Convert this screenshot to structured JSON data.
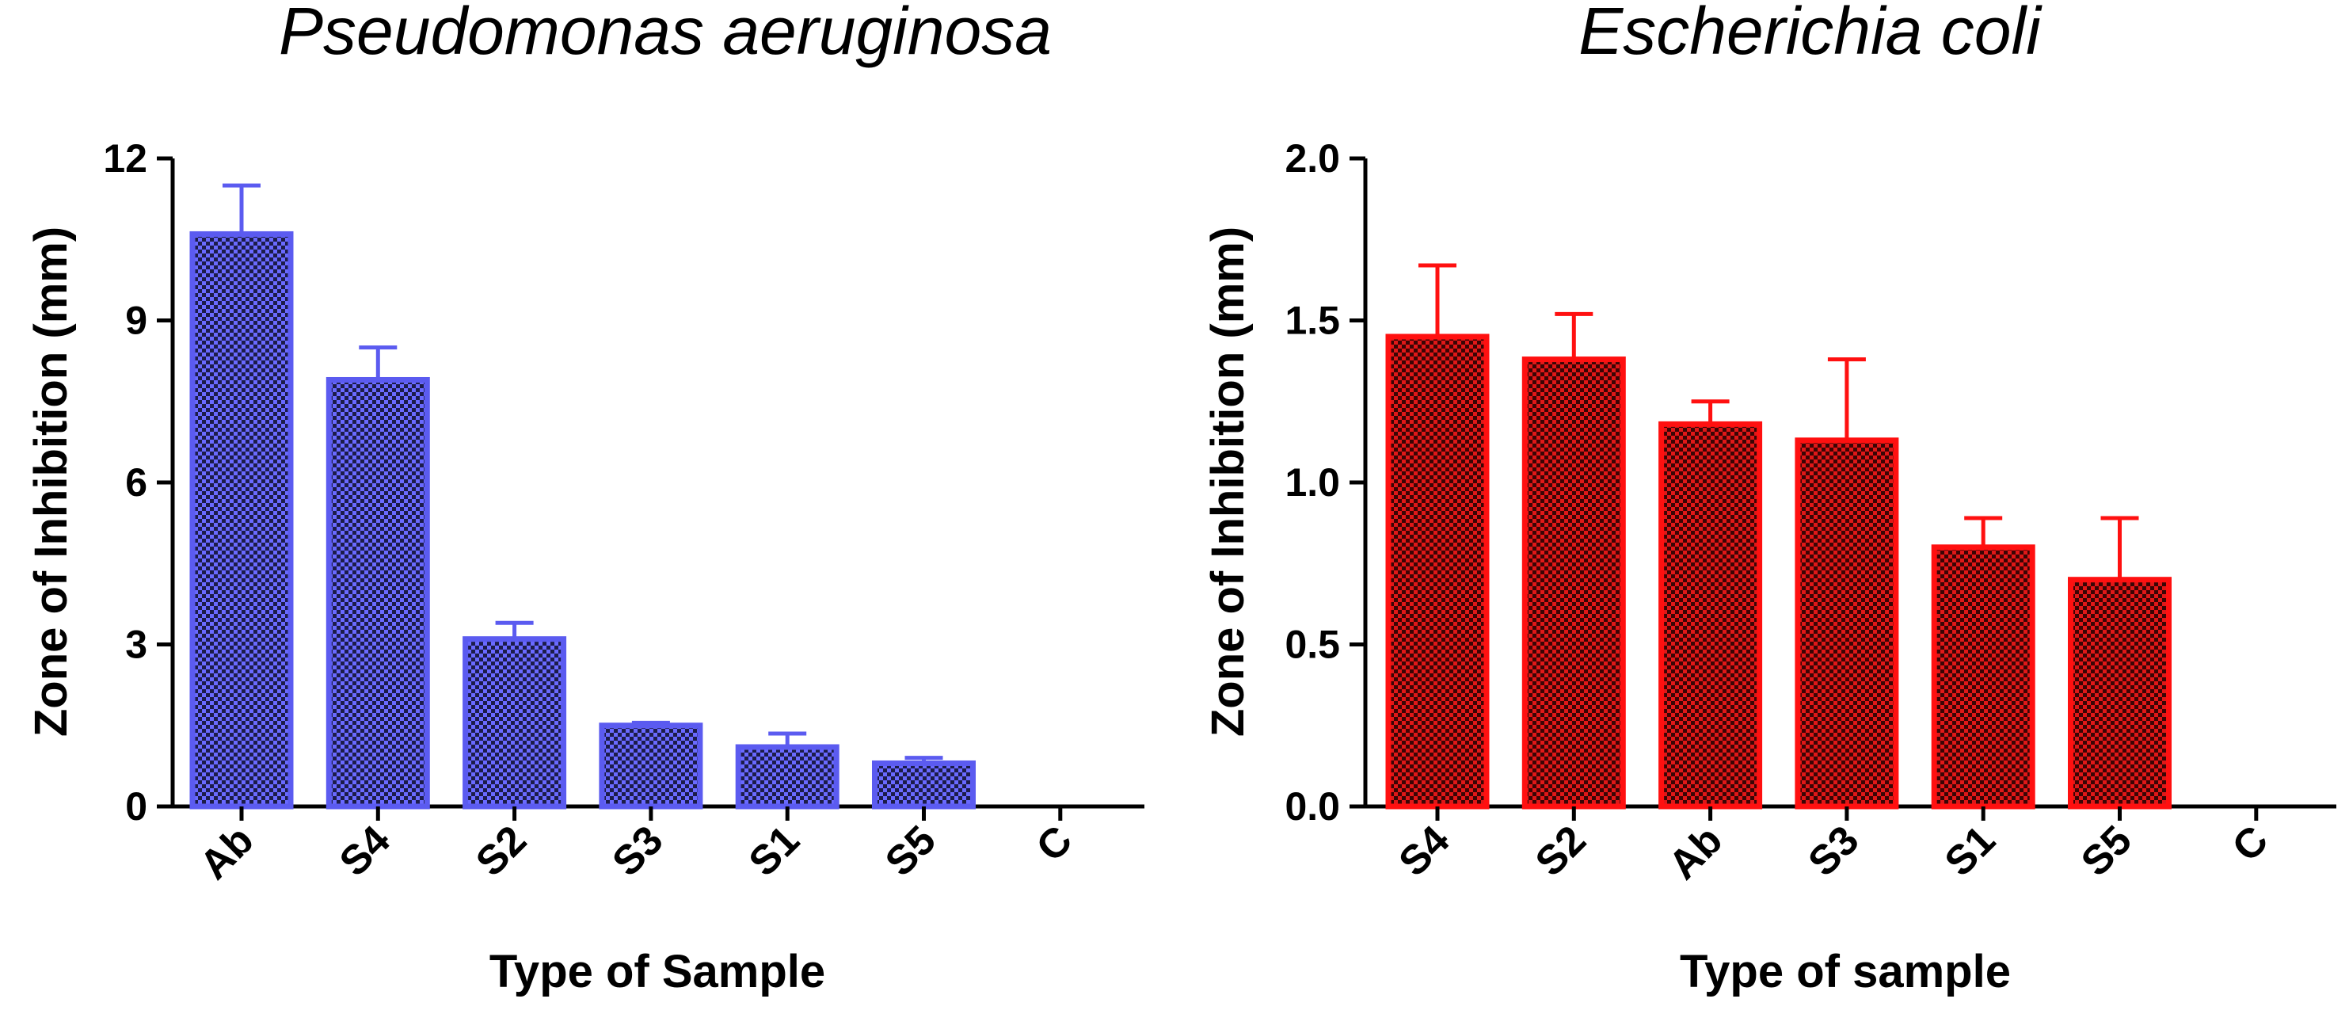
{
  "chart_data": [
    {
      "type": "bar",
      "title": "Pseudomonas aeruginosa",
      "xlabel": "Type of Sample",
      "ylabel": "Zone of Inhibition (mm)",
      "categories": [
        "Ab",
        "S4",
        "S2",
        "S3",
        "S1",
        "S5",
        "C"
      ],
      "values": [
        10.6,
        7.9,
        3.1,
        1.5,
        1.1,
        0.8,
        0
      ],
      "errors": [
        0.9,
        0.6,
        0.3,
        0.05,
        0.25,
        0.1,
        0
      ],
      "ylim": [
        0,
        12
      ],
      "yticks": [
        0,
        3,
        6,
        9,
        12
      ],
      "ytick_labels": [
        "0",
        "3",
        "6",
        "9",
        "12"
      ],
      "color": "#5B5BF0",
      "fill_color": "#15153A",
      "grid": false
    },
    {
      "type": "bar",
      "title": "Escherichia coli",
      "xlabel": "Type of sample",
      "ylabel": "Zone of Inhibition (mm)",
      "categories": [
        "S4",
        "S2",
        "Ab",
        "S3",
        "S1",
        "S5",
        "C"
      ],
      "values": [
        1.45,
        1.38,
        1.18,
        1.13,
        0.8,
        0.7,
        0
      ],
      "errors": [
        0.22,
        0.14,
        0.07,
        0.25,
        0.09,
        0.19,
        0
      ],
      "ylim": [
        0,
        2.0
      ],
      "yticks": [
        0,
        0.5,
        1.0,
        1.5,
        2.0
      ],
      "ytick_labels": [
        "0.0",
        "0.5",
        "1.0",
        "1.5",
        "2.0"
      ],
      "color": "#FF1010",
      "fill_color": "#3A0505",
      "grid": false
    }
  ]
}
